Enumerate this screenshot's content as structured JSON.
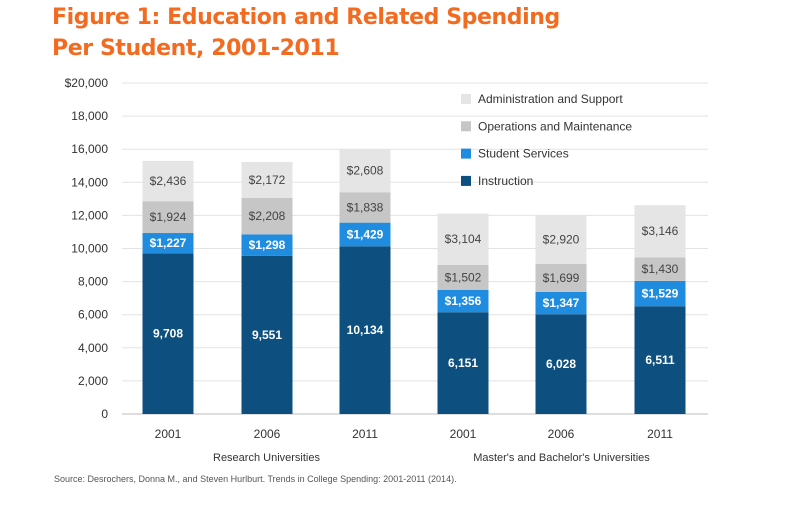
{
  "title": {
    "line1": "Figure 1: Education and Related Spending",
    "line2": "Per Student, 2001-2011"
  },
  "source": "Source: Desrochers, Donna M., and Steven Hurlburt. Trends in College Spending: 2001-2011 (2014).",
  "chart_data": {
    "type": "bar",
    "stacked": true,
    "categories": [
      "2001",
      "2006",
      "2011",
      "2001",
      "2006",
      "2011"
    ],
    "groups": [
      {
        "label": "Research Universities",
        "categories": [
          0,
          1,
          2
        ]
      },
      {
        "label": "Master's and Bachelor's Universities",
        "categories": [
          3,
          4,
          5
        ]
      }
    ],
    "ylim": [
      0,
      20000
    ],
    "yticks": [
      "0",
      "2,000",
      "4,000",
      "6,000",
      "8,000",
      "10,000",
      "12,000",
      "14,000",
      "16,000",
      "18,000",
      "$20,000"
    ],
    "ytick_values": [
      0,
      2000,
      4000,
      6000,
      8000,
      10000,
      12000,
      14000,
      16000,
      18000,
      20000
    ],
    "grid": true,
    "legend_position": "top-right",
    "series": [
      {
        "name": "Instruction",
        "color": "#0d4f7f",
        "label_color": "#ffffff",
        "values": [
          9708,
          9551,
          10134,
          6151,
          6028,
          6511
        ],
        "labels": [
          "9,708",
          "9,551",
          "10,134",
          "6,151",
          "6,028",
          "6,511"
        ]
      },
      {
        "name": "Student Services",
        "color": "#1f8ce0",
        "label_color": "#ffffff",
        "values": [
          1227,
          1298,
          1429,
          1356,
          1347,
          1529
        ],
        "labels": [
          "$1,227",
          "$1,298",
          "$1,429",
          "$1,356",
          "$1,347",
          "$1,529"
        ]
      },
      {
        "name": "Operations and Maintenance",
        "color": "#c6c6c6",
        "label_color": "#444444",
        "values": [
          1924,
          2208,
          1838,
          1502,
          1699,
          1430
        ],
        "labels": [
          "$1,924",
          "$2,208",
          "$1,838",
          "$1,502",
          "$1,699",
          "$1,430"
        ]
      },
      {
        "name": "Administration and Support",
        "color": "#e5e5e5",
        "label_color": "#444444",
        "values": [
          2436,
          2172,
          2608,
          3104,
          2920,
          3146
        ],
        "labels": [
          "$2,436",
          "$2,172",
          "$2,608",
          "$3,104",
          "$2,920",
          "$3,146"
        ]
      }
    ]
  }
}
